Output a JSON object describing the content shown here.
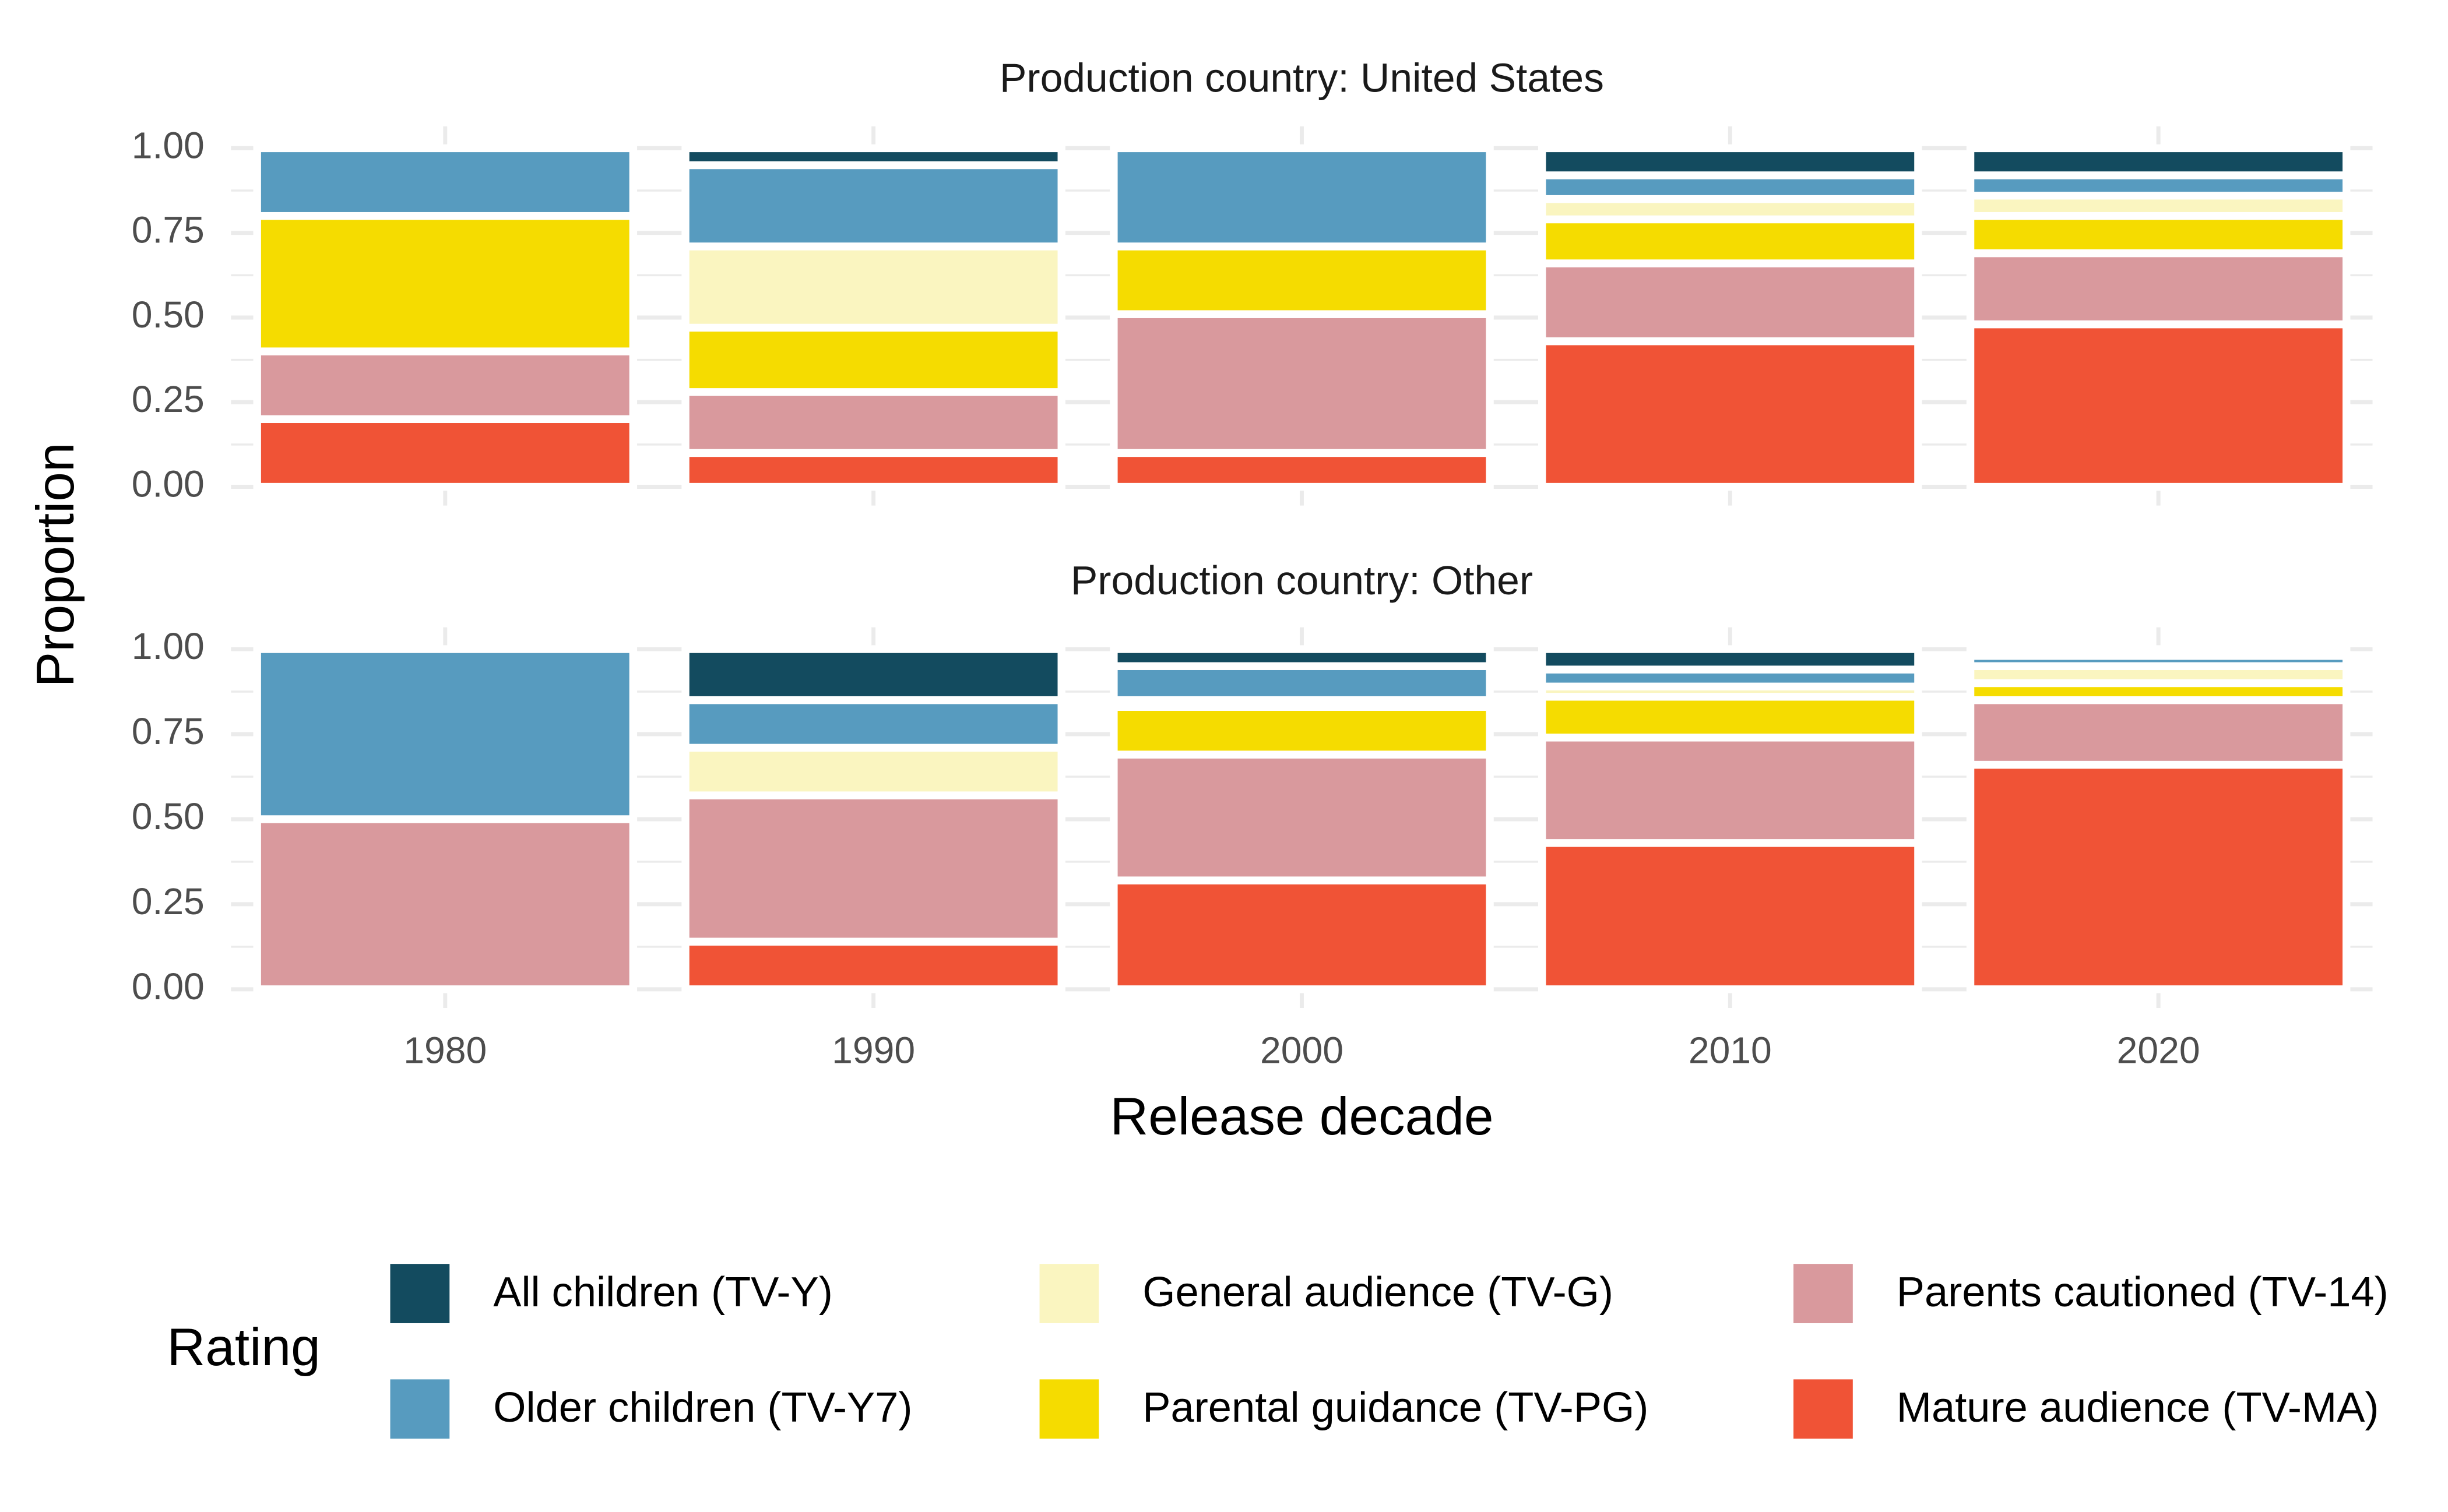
{
  "chart_data": {
    "type": "bar",
    "stacked": true,
    "x_label": "Release decade",
    "y_label": "Proportion",
    "legend_title": "Rating",
    "categories": [
      "1980",
      "1990",
      "2000",
      "2010",
      "2020"
    ],
    "ylim": [
      0,
      1
    ],
    "yticks": [
      {
        "value": 0,
        "label": "0.00"
      },
      {
        "value": 0.25,
        "label": "0.25"
      },
      {
        "value": 0.5,
        "label": "0.50"
      },
      {
        "value": 0.75,
        "label": "0.75"
      },
      {
        "value": 1,
        "label": "1.00"
      }
    ],
    "grid": true,
    "series": [
      {
        "name": "All children (TV-Y)",
        "color": "#134b5f"
      },
      {
        "name": "Older children (TV-Y7)",
        "color": "#579bbf"
      },
      {
        "name": "General audience (TV-G)",
        "color": "#faf5c0"
      },
      {
        "name": "Parental guidance (TV-PG)",
        "color": "#f5dc00"
      },
      {
        "name": "Parents cautioned (TV-14)",
        "color": "#d9999d"
      },
      {
        "name": "Mature audience (TV-MA)",
        "color": "#f05336"
      }
    ],
    "panels": [
      {
        "title": "Production country: United States",
        "values": [
          [
            0,
            0.05,
            0,
            0.08,
            0.08
          ],
          [
            0.2,
            0.24,
            0.29,
            0.07,
            0.06
          ],
          [
            0,
            0.24,
            0,
            0.06,
            0.06
          ],
          [
            0.4,
            0.19,
            0.2,
            0.13,
            0.11
          ],
          [
            0.2,
            0.18,
            0.41,
            0.23,
            0.21
          ],
          [
            0.2,
            0.1,
            0.1,
            0.43,
            0.48
          ]
        ]
      },
      {
        "title": "Production country: Other",
        "values": [
          [
            0,
            0.15,
            0.05,
            0.06,
            0.02
          ],
          [
            0.5,
            0.14,
            0.1,
            0.05,
            0.03
          ],
          [
            0,
            0.14,
            0.02,
            0.03,
            0.05
          ],
          [
            0,
            0,
            0.14,
            0.12,
            0.05
          ],
          [
            0.5,
            0.43,
            0.37,
            0.31,
            0.19
          ],
          [
            0,
            0.14,
            0.32,
            0.43,
            0.66
          ]
        ]
      }
    ]
  }
}
